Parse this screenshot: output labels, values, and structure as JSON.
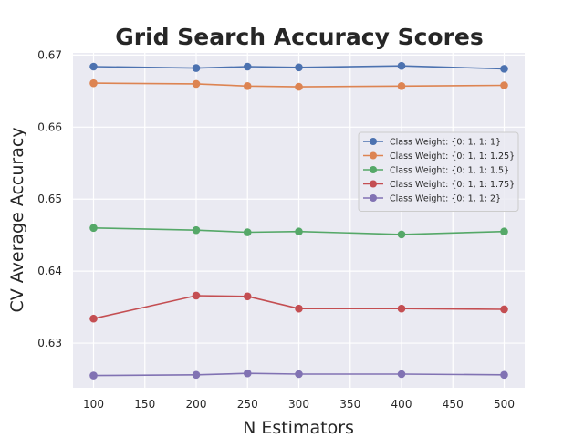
{
  "chart_data": {
    "type": "line",
    "title": "Grid Search Accuracy Scores",
    "xlabel": "N Estimators",
    "ylabel": "CV Average Accuracy",
    "x": [
      100,
      200,
      250,
      300,
      400,
      500
    ],
    "xlim": [
      80,
      520
    ],
    "ylim": [
      0.6238,
      0.6703
    ],
    "xticks": [
      100,
      150,
      200,
      250,
      300,
      350,
      400,
      450,
      500
    ],
    "yticks": [
      0.63,
      0.64,
      0.65,
      0.66,
      0.67
    ],
    "ytick_labels": [
      "0.63",
      "0.64",
      "0.65",
      "0.66",
      "0.67"
    ],
    "grid": true,
    "legend_position": "right",
    "series": [
      {
        "name": "Class Weight: {0: 1, 1: 1}",
        "color": "#4c72b0",
        "values": [
          0.6684,
          0.6682,
          0.6684,
          0.6683,
          0.6685,
          0.6681
        ]
      },
      {
        "name": "Class Weight: {0: 1, 1: 1.25}",
        "color": "#dd8452",
        "values": [
          0.6661,
          0.666,
          0.6657,
          0.6656,
          0.6657,
          0.6658
        ]
      },
      {
        "name": "Class Weight: {0: 1, 1: 1.5}",
        "color": "#55a868",
        "values": [
          0.646,
          0.6457,
          0.6454,
          0.6455,
          0.6451,
          0.6455
        ]
      },
      {
        "name": "Class Weight: {0: 1, 1: 1.75}",
        "color": "#c44e52",
        "values": [
          0.6334,
          0.6366,
          0.6365,
          0.6348,
          0.6348,
          0.6347
        ]
      },
      {
        "name": "Class Weight: {0: 1, 1: 2}",
        "color": "#8172b3",
        "values": [
          0.6255,
          0.6256,
          0.6258,
          0.6257,
          0.6257,
          0.6256
        ]
      }
    ]
  }
}
